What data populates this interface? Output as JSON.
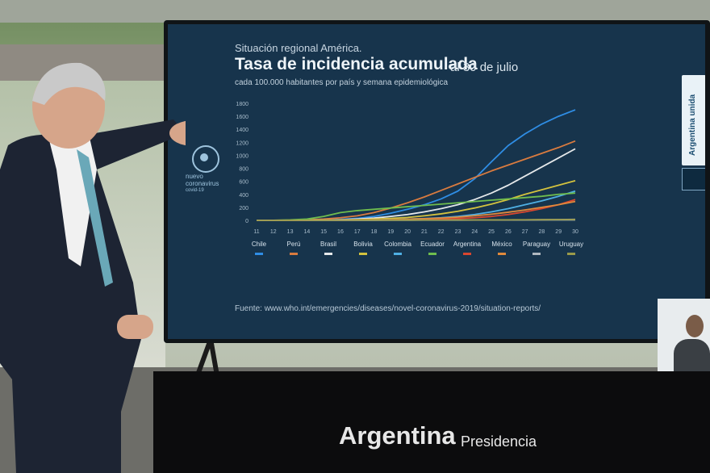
{
  "screen": {
    "region_title": "Situación regional América.",
    "main_title": "Tasa de incidencia acumulada",
    "date": "al 30 de julio",
    "subtitle": "cada 100.000 habitantes por país y semana epidemiológica",
    "source": "Fuente: www.who.int/emergencies/diseases/novel-coronavirus-2019/situation-reports/",
    "logo": {
      "line1": "nuevo",
      "line2": "coronavirus",
      "line3": "covid-19"
    },
    "badge": "Argentina unida"
  },
  "podium": {
    "brand": "Argentina",
    "sub": "Presidencia"
  },
  "colors": {
    "screen_bg": "#17344c",
    "podium": "#0c0c0d"
  },
  "chart_data": {
    "type": "line",
    "title": "Tasa de incidencia acumulada",
    "subtitle": "cada 100.000 habitantes por país y semana epidemiológica",
    "x": [
      11,
      12,
      13,
      14,
      15,
      16,
      17,
      18,
      19,
      20,
      21,
      22,
      23,
      24,
      25,
      26,
      27,
      28,
      29,
      30
    ],
    "y_ticks": [
      0,
      200,
      400,
      600,
      800,
      1000,
      1200,
      1400,
      1600,
      1800
    ],
    "ylim": [
      0,
      1800
    ],
    "series": [
      {
        "name": "Chile",
        "color": "#2f8de4",
        "values": [
          0,
          1,
          2,
          4,
          8,
          15,
          30,
          60,
          110,
          170,
          240,
          330,
          450,
          640,
          900,
          1150,
          1330,
          1480,
          1600,
          1700
        ]
      },
      {
        "name": "Perú",
        "color": "#d97b3f",
        "values": [
          0,
          1,
          3,
          8,
          20,
          40,
          70,
          120,
          190,
          270,
          360,
          460,
          560,
          660,
          760,
          850,
          940,
          1030,
          1120,
          1220
        ]
      },
      {
        "name": "Brasil",
        "color": "#e5e8ea",
        "values": [
          0,
          1,
          2,
          3,
          5,
          10,
          20,
          35,
          60,
          90,
          130,
          180,
          240,
          320,
          420,
          540,
          680,
          820,
          960,
          1100
        ]
      },
      {
        "name": "Bolivia",
        "color": "#d3c23e",
        "values": [
          0,
          0,
          1,
          2,
          4,
          8,
          12,
          20,
          30,
          45,
          70,
          100,
          140,
          190,
          250,
          320,
          400,
          470,
          540,
          610
        ]
      },
      {
        "name": "Colombia",
        "color": "#4fb0e4",
        "values": [
          0,
          0,
          1,
          1,
          2,
          3,
          5,
          8,
          12,
          18,
          28,
          40,
          60,
          90,
          130,
          180,
          240,
          300,
          370,
          450
        ]
      },
      {
        "name": "Ecuador",
        "color": "#6fbd4e",
        "values": [
          0,
          2,
          8,
          20,
          60,
          120,
          150,
          170,
          190,
          210,
          230,
          250,
          270,
          290,
          310,
          330,
          350,
          370,
          400,
          420
        ]
      },
      {
        "name": "Argentina",
        "color": "#d9462f",
        "values": [
          0,
          0,
          1,
          1,
          2,
          3,
          4,
          6,
          8,
          11,
          15,
          20,
          28,
          40,
          60,
          90,
          130,
          180,
          240,
          320
        ]
      },
      {
        "name": "México",
        "color": "#e08a3c",
        "values": [
          0,
          0,
          0,
          1,
          2,
          3,
          5,
          8,
          12,
          18,
          26,
          36,
          50,
          70,
          95,
          125,
          160,
          200,
          240,
          290
        ]
      },
      {
        "name": "Paraguay",
        "color": "#b0b8c0",
        "values": [
          0,
          0,
          0,
          0,
          0,
          1,
          1,
          1,
          2,
          2,
          3,
          3,
          4,
          5,
          6,
          7,
          8,
          10,
          12,
          15
        ]
      },
      {
        "name": "Uruguay",
        "color": "#9a9a4a",
        "values": [
          0,
          0,
          1,
          2,
          2,
          3,
          3,
          3,
          4,
          4,
          5,
          5,
          6,
          6,
          7,
          8,
          9,
          10,
          11,
          12
        ]
      }
    ]
  }
}
